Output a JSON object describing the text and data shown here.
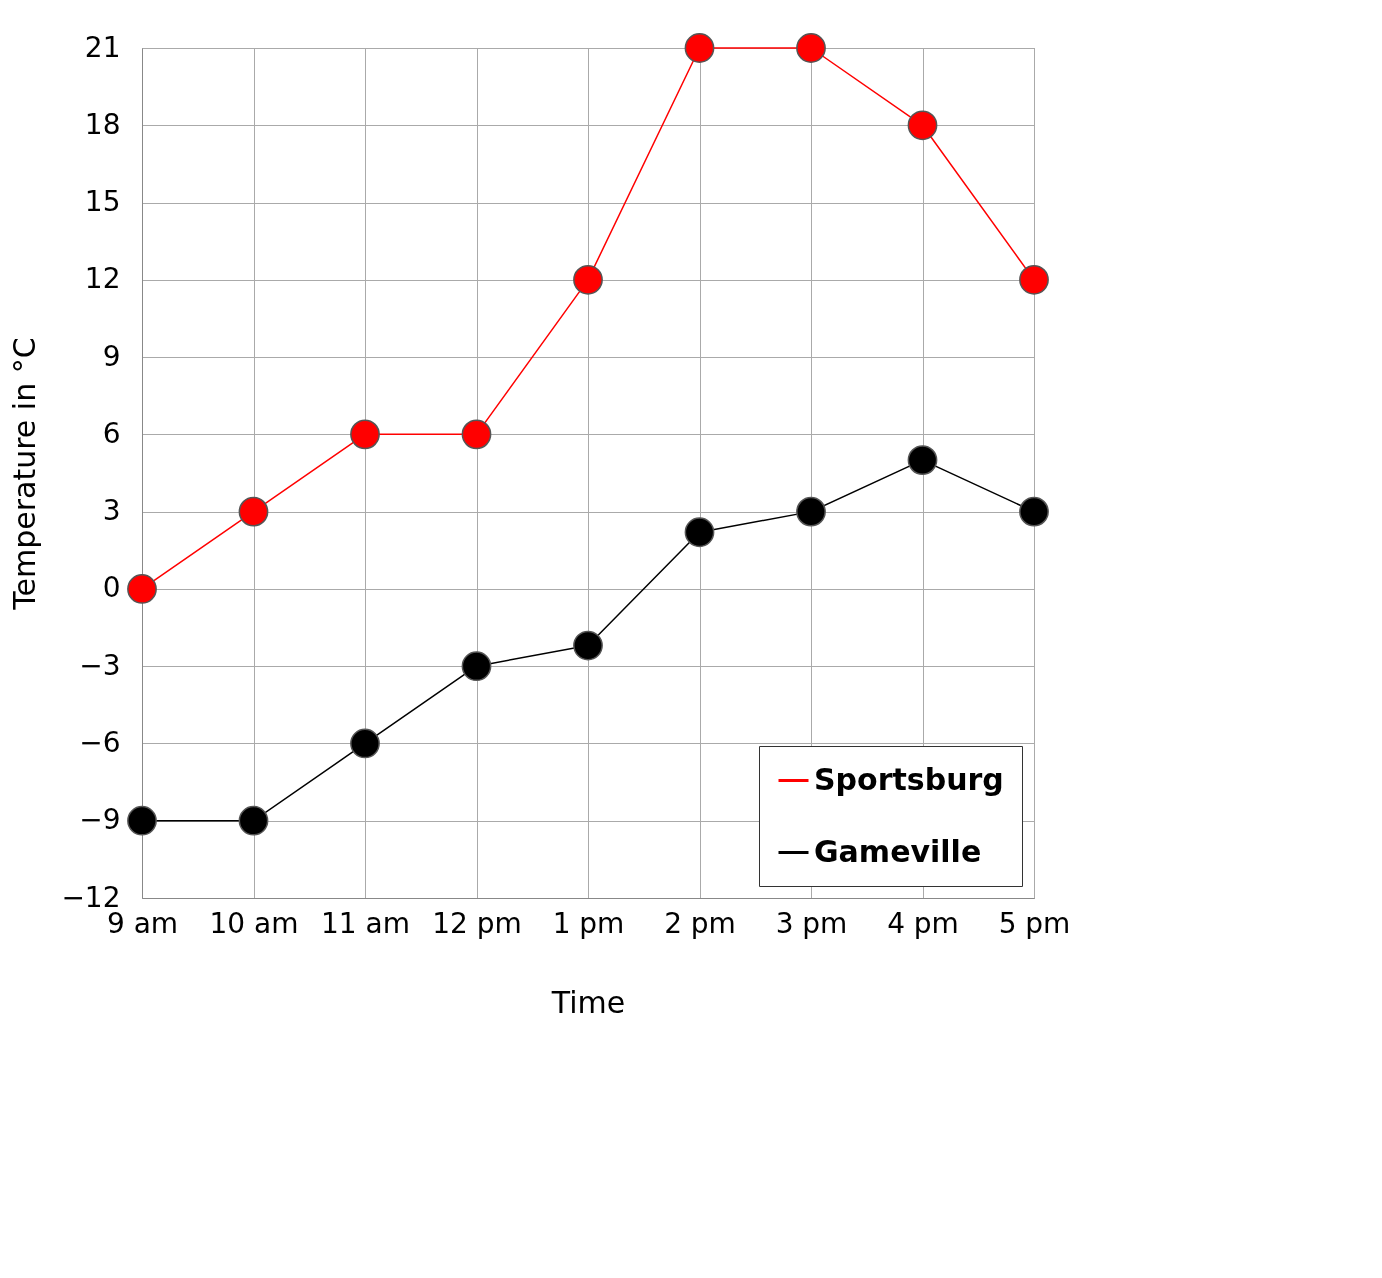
{
  "chart_data": {
    "type": "line",
    "xlabel": "Time",
    "ylabel": "Temperature in °C",
    "categories": [
      "9 am",
      "10 am",
      "11 am",
      "12 pm",
      "1 pm",
      "2 pm",
      "3 pm",
      "4 pm",
      "5 pm"
    ],
    "series": [
      {
        "name": "Sportsburg",
        "color": "#ff0000",
        "values": [
          0,
          3,
          6,
          6,
          12,
          21,
          21,
          18,
          12
        ]
      },
      {
        "name": "Gameville",
        "color": "#000000",
        "values": [
          -9,
          -9,
          -6,
          -3,
          -2.2,
          2.2,
          3,
          5,
          3
        ]
      }
    ],
    "ylim": [
      -12,
      21
    ],
    "yticks": [
      -12,
      -9,
      -6,
      -3,
      0,
      3,
      6,
      9,
      12,
      15,
      18,
      21
    ],
    "grid": true,
    "legend": "bottom right",
    "marker": "circle",
    "line_style": "solid"
  }
}
